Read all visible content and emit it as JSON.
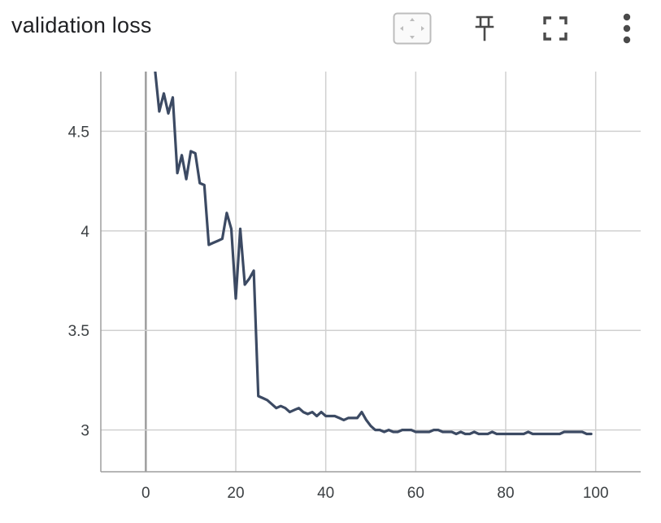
{
  "chart_title": "validation loss",
  "toolbar": {
    "icons": [
      "fit-domain-icon",
      "pin-icon",
      "fullscreen-icon",
      "more-vert-icon"
    ]
  },
  "colors": {
    "line": "#3c4a63",
    "grid": "#d0d0d0",
    "axis": "#9e9e9e",
    "icon": "#4a4a4a",
    "icon_border": "#bdbdbd"
  },
  "chart_data": {
    "type": "line",
    "title": "validation loss",
    "xlabel": "",
    "ylabel": "",
    "xlim": [
      -10,
      110
    ],
    "ylim": [
      2.79,
      4.8
    ],
    "xticks": [
      0,
      20,
      40,
      60,
      80,
      100
    ],
    "xtick_labels": [
      "0",
      "20",
      "40",
      "60",
      "80",
      "100"
    ],
    "yticks": [
      3,
      3.5,
      4,
      4.5
    ],
    "ytick_labels": [
      "3",
      "3.5",
      "4",
      "4.5"
    ],
    "grid": true,
    "series": [
      {
        "x": [
          2,
          3,
          4,
          5,
          6,
          7,
          8,
          9,
          10,
          11,
          12,
          13,
          14,
          15,
          16,
          17,
          18,
          19,
          20,
          21,
          22,
          23,
          24,
          25,
          26,
          27,
          28,
          29,
          30,
          31,
          32,
          33,
          34,
          35,
          36,
          37,
          38,
          39,
          40,
          41,
          42,
          43,
          44,
          45,
          46,
          47,
          48,
          49,
          50,
          51,
          52,
          53,
          54,
          55,
          56,
          57,
          58,
          59,
          60,
          61,
          62,
          63,
          64,
          65,
          66,
          67,
          68,
          69,
          70,
          71,
          72,
          73,
          74,
          75,
          76,
          77,
          78,
          79,
          80,
          81,
          82,
          83,
          84,
          85,
          86,
          87,
          88,
          89,
          90,
          91,
          92,
          93,
          94,
          95,
          96,
          97,
          98,
          99
        ],
        "values": [
          4.82,
          4.6,
          4.69,
          4.59,
          4.67,
          4.29,
          4.38,
          4.26,
          4.4,
          4.39,
          4.24,
          4.23,
          3.93,
          3.94,
          3.95,
          3.96,
          4.09,
          4.01,
          3.66,
          4.01,
          3.73,
          3.76,
          3.8,
          3.17,
          3.16,
          3.15,
          3.13,
          3.11,
          3.12,
          3.11,
          3.09,
          3.1,
          3.11,
          3.09,
          3.08,
          3.09,
          3.07,
          3.09,
          3.07,
          3.07,
          3.07,
          3.06,
          3.05,
          3.06,
          3.06,
          3.06,
          3.09,
          3.05,
          3.02,
          3.0,
          3.0,
          2.99,
          3.0,
          2.99,
          2.99,
          3.0,
          3.0,
          3.0,
          2.99,
          2.99,
          2.99,
          2.99,
          3.0,
          3.0,
          2.99,
          2.99,
          2.99,
          2.98,
          2.99,
          2.98,
          2.98,
          2.99,
          2.98,
          2.98,
          2.98,
          2.99,
          2.98,
          2.98,
          2.98,
          2.98,
          2.98,
          2.98,
          2.98,
          2.99,
          2.98,
          2.98,
          2.98,
          2.98,
          2.98,
          2.98,
          2.98,
          2.99,
          2.99,
          2.99,
          2.99,
          2.99,
          2.98,
          2.98
        ],
        "color": "#3c4a63"
      }
    ]
  }
}
